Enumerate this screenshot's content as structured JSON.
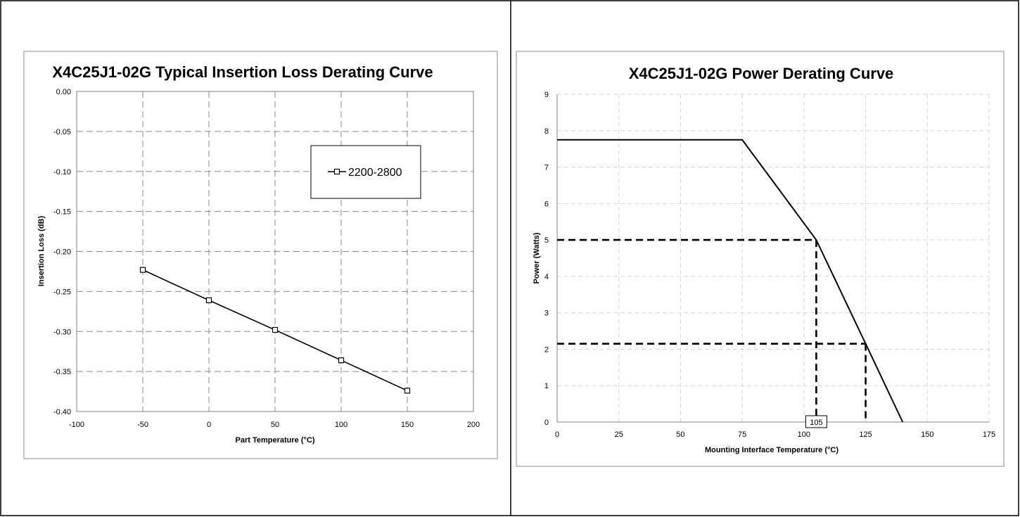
{
  "chart_data": [
    {
      "type": "line",
      "title": "X4C25J1-02G Typical Insertion Loss Derating Curve",
      "xlabel": "Part Temperature (°C)",
      "ylabel": "Insertion Loss (dB)",
      "xlim": [
        -100,
        200
      ],
      "ylim": [
        -0.4,
        0.0
      ],
      "x_ticks": [
        "-100",
        "-50",
        "0",
        "50",
        "100",
        "150",
        "200"
      ],
      "y_ticks": [
        "0.00",
        "-0.05",
        "-0.10",
        "-0.15",
        "-0.20",
        "-0.25",
        "-0.30",
        "-0.35",
        "-0.40"
      ],
      "grid": "dashed",
      "legend_position": "top-right",
      "series": [
        {
          "name": "2200-2800",
          "marker": "square",
          "color": "#000000",
          "x": [
            -50,
            0,
            50,
            100,
            150
          ],
          "y": [
            -0.223,
            -0.261,
            -0.298,
            -0.336,
            -0.374
          ]
        }
      ]
    },
    {
      "type": "line",
      "title": "X4C25J1-02G Power Derating Curve",
      "xlabel": "Mounting Interface Temperature (°C)",
      "ylabel": "Power (Watts)",
      "xlim": [
        0,
        175
      ],
      "ylim": [
        0,
        9
      ],
      "x_ticks": [
        "0",
        "25",
        "50",
        "75",
        "100",
        "125",
        "150",
        "175"
      ],
      "y_ticks": [
        "0",
        "1",
        "2",
        "3",
        "4",
        "5",
        "6",
        "7",
        "8",
        "9"
      ],
      "grid": "dashed",
      "series": [
        {
          "color": "#000000",
          "x": [
            0,
            75,
            105,
            125,
            140
          ],
          "y": [
            7.75,
            7.75,
            5.0,
            2.15,
            0
          ]
        }
      ],
      "reference_lines": [
        {
          "x": [
            0,
            105
          ],
          "y": [
            5.0,
            5.0
          ]
        },
        {
          "x": [
            105,
            105
          ],
          "y": [
            5.0,
            0
          ]
        },
        {
          "x": [
            0,
            125
          ],
          "y": [
            2.15,
            2.15
          ]
        },
        {
          "x": [
            125,
            125
          ],
          "y": [
            2.15,
            0
          ]
        }
      ],
      "annotations": [
        {
          "text": "105",
          "x": 105,
          "y": 0
        }
      ]
    }
  ]
}
